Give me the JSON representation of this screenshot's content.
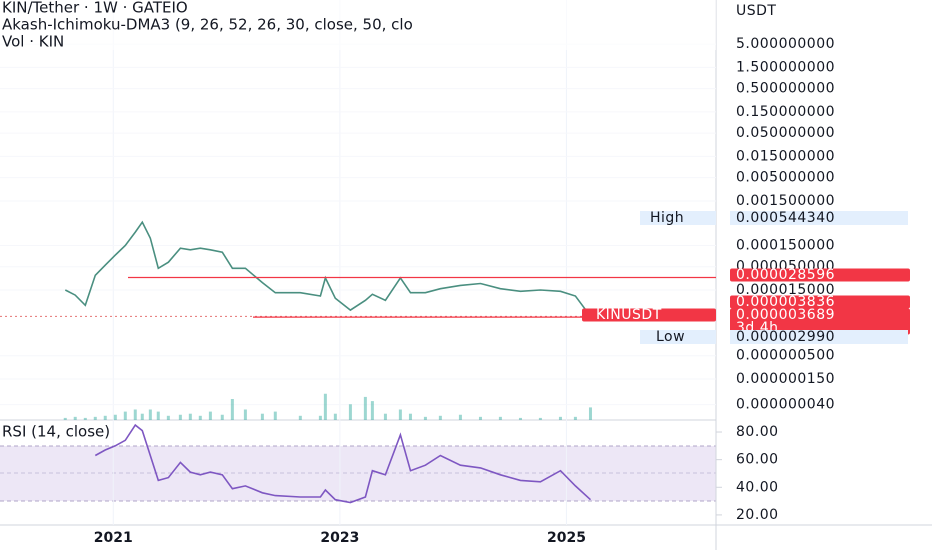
{
  "header": {
    "title": "KIN/Tether · 1W · GATEIO",
    "indicator": "Akash-Ichimoku-DMA3 (9, 26, 52, 26, 30, close, 50, clo",
    "volume": "Vol · KIN",
    "currency": "USDT"
  },
  "chart_data": {
    "type": "line",
    "log_scale": true,
    "color": "#4a8f80",
    "x": [
      2020.576,
      2020.664,
      2020.753,
      2020.841,
      2020.929,
      2021.018,
      2021.106,
      2021.194,
      2021.256,
      2021.327,
      2021.397,
      2021.486,
      2021.592,
      2021.68,
      2021.768,
      2021.857,
      2021.962,
      2022.051,
      2022.166,
      2022.316,
      2022.43,
      2022.651,
      2022.828,
      2022.872,
      2022.96,
      2023.093,
      2023.225,
      2023.287,
      2023.402,
      2023.534,
      2023.623,
      2023.755,
      2023.887,
      2024.064,
      2024.241,
      2024.417,
      2024.594,
      2024.77,
      2024.947,
      2025.079,
      2025.212
    ],
    "series": [
      {
        "name": "KINUSDT",
        "color": "#4a8f80",
        "values": [
          1.5e-05,
          1.15e-05,
          6.8e-06,
          3.2e-05,
          5.4e-05,
          9.1e-05,
          0.00015,
          0.0003,
          0.0005,
          0.00022,
          4.6e-05,
          6.3e-05,
          0.00013,
          0.00012,
          0.00013,
          0.00012,
          0.000106,
          4.6e-05,
          4.6e-05,
          2.2e-05,
          1.3e-05,
          1.3e-05,
          1.1e-05,
          2.8e-05,
          9.8e-06,
          5.3e-06,
          8.8e-06,
          1.2e-05,
          8.8e-06,
          2.8e-05,
          1.3e-05,
          1.3e-05,
          1.6e-05,
          1.9e-05,
          2.1e-05,
          1.6e-05,
          1.4e-05,
          1.5e-05,
          1.4e-05,
          1.1e-05,
          3.836e-06
        ]
      }
    ],
    "volume": {
      "color": "#26a69a",
      "ylim": [
        0,
        100
      ],
      "values": [
        2,
        3,
        2,
        3,
        4,
        5,
        8,
        10,
        6,
        10,
        8,
        4,
        5,
        6,
        4,
        8,
        5,
        20,
        10,
        6,
        8,
        4,
        4,
        25,
        6,
        15,
        22,
        18,
        6,
        10,
        6,
        3,
        4,
        5,
        3,
        3,
        2,
        2,
        3,
        3,
        12
      ]
    },
    "xlim": [
      2020.0,
      2026.32
    ],
    "xticks": [
      2021,
      2023,
      2025
    ],
    "ylim": [
      1.8e-08,
      49
    ],
    "yticks": [
      {
        "value": 5,
        "label": "5.000000000"
      },
      {
        "value": 1.5,
        "label": "1.500000000"
      },
      {
        "value": 0.5,
        "label": "0.500000000"
      },
      {
        "value": 0.15,
        "label": "0.150000000"
      },
      {
        "value": 0.05,
        "label": "0.050000000"
      },
      {
        "value": 0.015,
        "label": "0.015000000"
      },
      {
        "value": 0.005,
        "label": "0.005000000"
      },
      {
        "value": 0.0015,
        "label": "0.001500000"
      },
      {
        "value": 0.00015,
        "label": "0.000150000"
      },
      {
        "value": 5e-05,
        "label": "0.000050000"
      },
      {
        "value": 1.5e-05,
        "label": "0.000015000"
      },
      {
        "value": 5e-07,
        "label": "0.000000500"
      },
      {
        "value": 1.5e-07,
        "label": "0.000000150"
      },
      {
        "value": 4e-08,
        "label": "0.000000040"
      }
    ],
    "high": {
      "name": "High",
      "value": 0.00054434,
      "label": "0.000544340"
    },
    "low": {
      "name": "Low",
      "value": 2.99e-06,
      "label": "0.000002990"
    },
    "levels": [
      {
        "value": 2.8596e-05,
        "label": "0.000028596"
      },
      {
        "value": 3.836e-06,
        "label": "0.000003836"
      },
      {
        "value": 3.689e-06,
        "label": "0.000003689",
        "symbol": "KINUSDT",
        "countdown": "3d 4h"
      }
    ],
    "rsi": {
      "title": "RSI (14, close)",
      "color": "#7e57c2",
      "ylim": [
        12.7,
        88.7
      ],
      "yticks": [
        {
          "value": 80,
          "label": "80.00"
        },
        {
          "value": 60,
          "label": "60.00"
        },
        {
          "value": 40,
          "label": "40.00"
        },
        {
          "value": 20,
          "label": "20.00"
        }
      ],
      "values": [
        null,
        null,
        null,
        63,
        67,
        70,
        74,
        85,
        81,
        63,
        45,
        47,
        58,
        51,
        49,
        51,
        49,
        39,
        41,
        36,
        34,
        33,
        33,
        38,
        31,
        29,
        33,
        52,
        49,
        78,
        52,
        56,
        63,
        56,
        54,
        49,
        45,
        44,
        52,
        41,
        31
      ]
    }
  }
}
